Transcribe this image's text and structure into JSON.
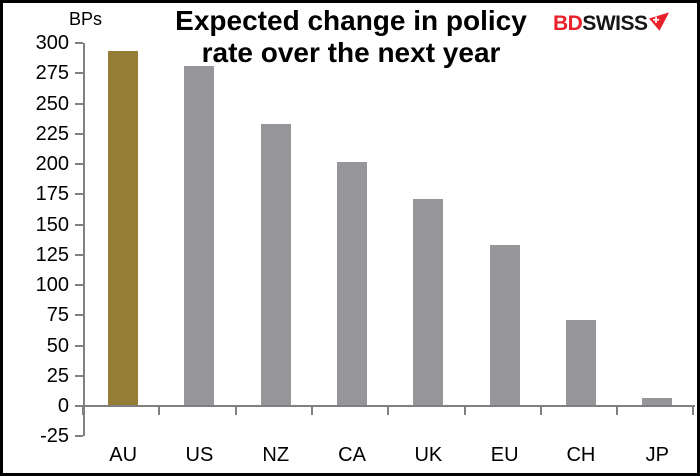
{
  "header": {
    "title_line1": "Expected change in policy",
    "title_line2": "rate over the next year",
    "logo": {
      "part1": "BD",
      "part2": "SWISS",
      "part1_color": "#e8212a",
      "part2_color": "#161616",
      "arrow_color": "#e8212a"
    }
  },
  "chart_data": {
    "type": "bar",
    "title": "Expected change in policy rate over the next year",
    "ylabel": "BPs",
    "xlabel": "",
    "categories": [
      "AU",
      "US",
      "NZ",
      "CA",
      "UK",
      "EU",
      "CH",
      "JP"
    ],
    "values": [
      293,
      281,
      233,
      202,
      171,
      133,
      71,
      7
    ],
    "ylim": [
      -25,
      300
    ],
    "ytick_step": 25,
    "yticks": [
      300,
      275,
      250,
      225,
      200,
      175,
      150,
      125,
      100,
      75,
      50,
      25,
      0,
      -25
    ],
    "highlight_index": 0,
    "highlight_color": "#967D35",
    "bar_color": "#95959A",
    "axis_color": "#808080",
    "grid": false,
    "legend": null
  }
}
